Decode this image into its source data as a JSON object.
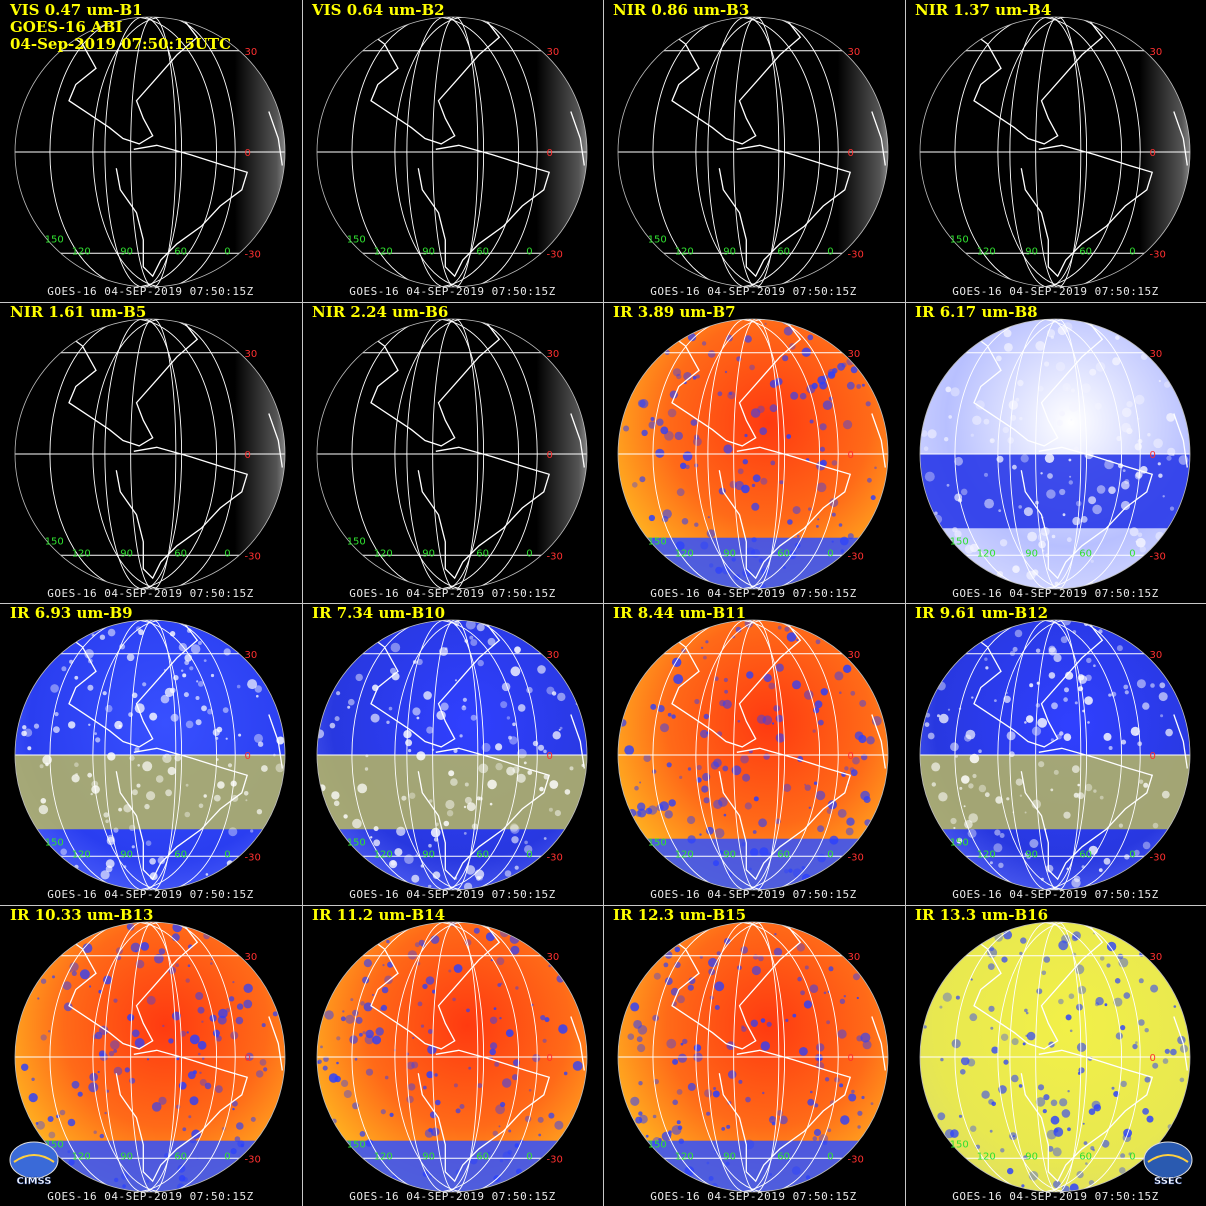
{
  "header": {
    "line2": "GOES-16 ABI",
    "line3": "04-Sep-2019 07:50:15UTC"
  },
  "footer_text": "GOES-16 04-SEP-2019 07:50:15Z",
  "lat_labels": [
    "30",
    "0",
    "-30"
  ],
  "lon_labels": [
    "150",
    "120",
    "90",
    "60",
    "0"
  ],
  "panels": [
    {
      "title": "VIS 0.47 um-B1",
      "style": "vis"
    },
    {
      "title": "VIS 0.64 um-B2",
      "style": "vis"
    },
    {
      "title": "NIR 0.86 um-B3",
      "style": "vis"
    },
    {
      "title": "NIR 1.37 um-B4",
      "style": "vis"
    },
    {
      "title": "NIR 1.61 um-B5",
      "style": "vis"
    },
    {
      "title": "NIR 2.24 um-B6",
      "style": "vis"
    },
    {
      "title": "IR 3.89 um-B7",
      "style": "warm"
    },
    {
      "title": "IR 6.17 um-B8",
      "style": "wv-light"
    },
    {
      "title": "IR 6.93 um-B9",
      "style": "wv"
    },
    {
      "title": "IR 7.34 um-B10",
      "style": "wv-olive"
    },
    {
      "title": "IR 8.44 um-B11",
      "style": "warm"
    },
    {
      "title": "IR 9.61 um-B12",
      "style": "wv-olive"
    },
    {
      "title": "IR 10.33 um-B13",
      "style": "warm"
    },
    {
      "title": "IR 11.2 um-B14",
      "style": "warm"
    },
    {
      "title": "IR 12.3 um-B15",
      "style": "warm"
    },
    {
      "title": "IR 13.3 um-B16",
      "style": "yellow"
    }
  ],
  "logos": {
    "left": "CIMSS",
    "right": "SSEC"
  },
  "colors": {
    "title": "#ffff00",
    "lat_label": "#ff3030",
    "lon_label": "#30e030",
    "grid": "#ffffff",
    "divider": "#c8c8c8"
  }
}
